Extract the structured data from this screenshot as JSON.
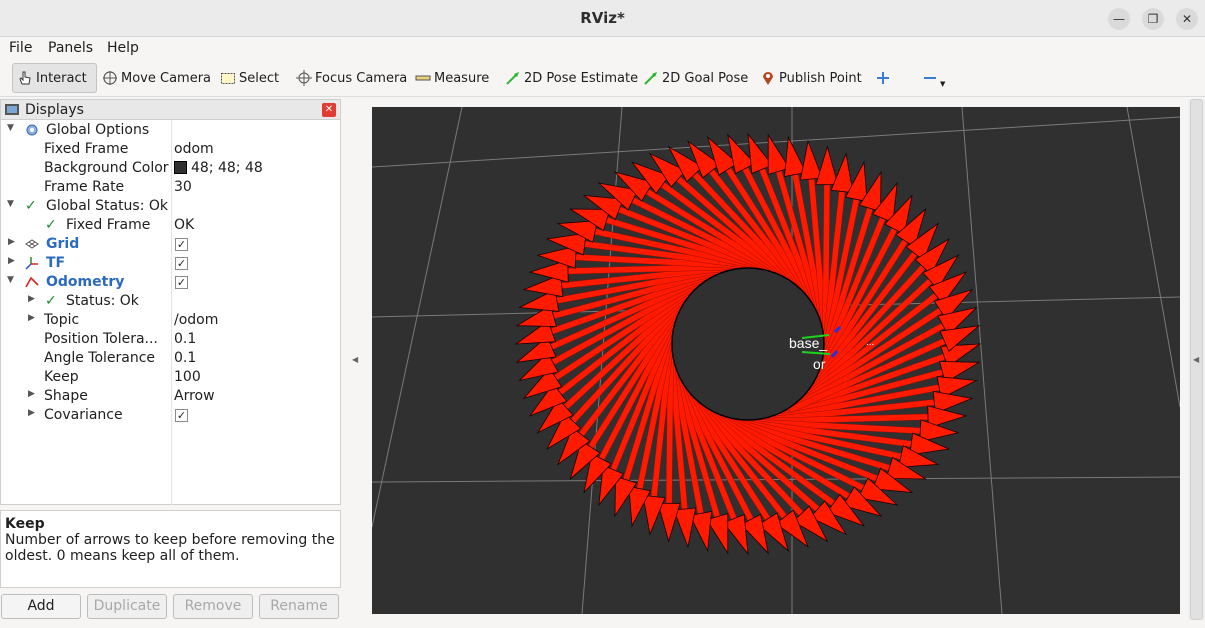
{
  "window": {
    "title": "RViz*"
  },
  "menu": {
    "file": "File",
    "panels": "Panels",
    "help": "Help"
  },
  "toolbar": {
    "interact": "Interact",
    "move_camera": "Move Camera",
    "select": "Select",
    "focus_camera": "Focus Camera",
    "measure": "Measure",
    "pose_estimate": "2D Pose Estimate",
    "goal_pose": "2D Goal Pose",
    "publish_point": "Publish Point"
  },
  "displays": {
    "title": "Displays",
    "global_options": "Global Options",
    "fixed_frame_label": "Fixed Frame",
    "fixed_frame_value": "odom",
    "background_color_label": "Background Color",
    "background_color_value": "48; 48; 48",
    "frame_rate_label": "Frame Rate",
    "frame_rate_value": "30",
    "global_status": "Global Status: Ok",
    "status_fixed_frame_label": "Fixed Frame",
    "status_fixed_frame_value": "OK",
    "grid": "Grid",
    "tf": "TF",
    "odometry": "Odometry",
    "odom_status": "Status: Ok",
    "topic_label": "Topic",
    "topic_value": "/odom",
    "position_tolerance_label": "Position Tolera...",
    "position_tolerance_value": "0.1",
    "angle_tolerance_label": "Angle Tolerance",
    "angle_tolerance_value": "0.1",
    "keep_label": "Keep",
    "keep_value": "100",
    "shape_label": "Shape",
    "shape_value": "Arrow",
    "covariance_label": "Covariance"
  },
  "description": {
    "heading": "Keep",
    "text": "Number of arrows to keep before removing the oldest. 0 means keep all of them."
  },
  "buttons": {
    "add": "Add",
    "duplicate": "Duplicate",
    "remove": "Remove",
    "rename": "Rename"
  },
  "viewport": {
    "background_color": "#303030",
    "arrow_color": "#ff1a00",
    "frame_label_base": "base_",
    "frame_label_odom": "or",
    "frame_label_other": "...",
    "arrow_count": 72
  }
}
